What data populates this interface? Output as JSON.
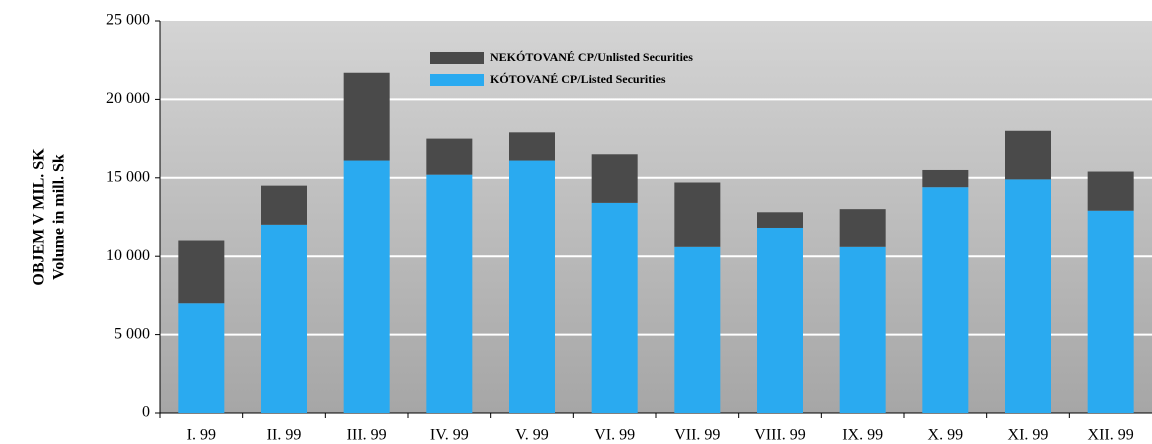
{
  "chart_data": {
    "type": "stacked_bar",
    "y_label": [
      "OBJEM V MIL. SK",
      "Volume in mill. Sk"
    ],
    "categories": [
      "I. 99",
      "II. 99",
      "III. 99",
      "IV. 99",
      "V. 99",
      "VI. 99",
      "VII. 99",
      "VIII. 99",
      "IX. 99",
      "X. 99",
      "XI. 99",
      "XII. 99"
    ],
    "series": [
      {
        "name": "KÓTOVANÉ CP/Listed Securities",
        "color": "#2aaaf0",
        "values": [
          7000,
          12000,
          16100,
          15200,
          16100,
          13400,
          10600,
          11800,
          10600,
          14400,
          14900,
          12900
        ]
      },
      {
        "name": "NEKÓTOVANÉ CP/Unlisted Securities",
        "color": "#4a4a4a",
        "values": [
          4000,
          2500,
          5600,
          2300,
          1800,
          3100,
          4100,
          1000,
          2400,
          1100,
          3100,
          2500
        ]
      }
    ],
    "ylim": [
      0,
      25000
    ],
    "yticks": [
      0,
      {
        "value": 5000,
        "label": "5 000"
      },
      {
        "value": 10000,
        "label": "10 000"
      },
      {
        "value": 15000,
        "label": "15 000"
      },
      {
        "value": 20000,
        "label": "20 000"
      },
      {
        "value": 25000,
        "label": "25 000"
      }
    ],
    "grid": true
  }
}
